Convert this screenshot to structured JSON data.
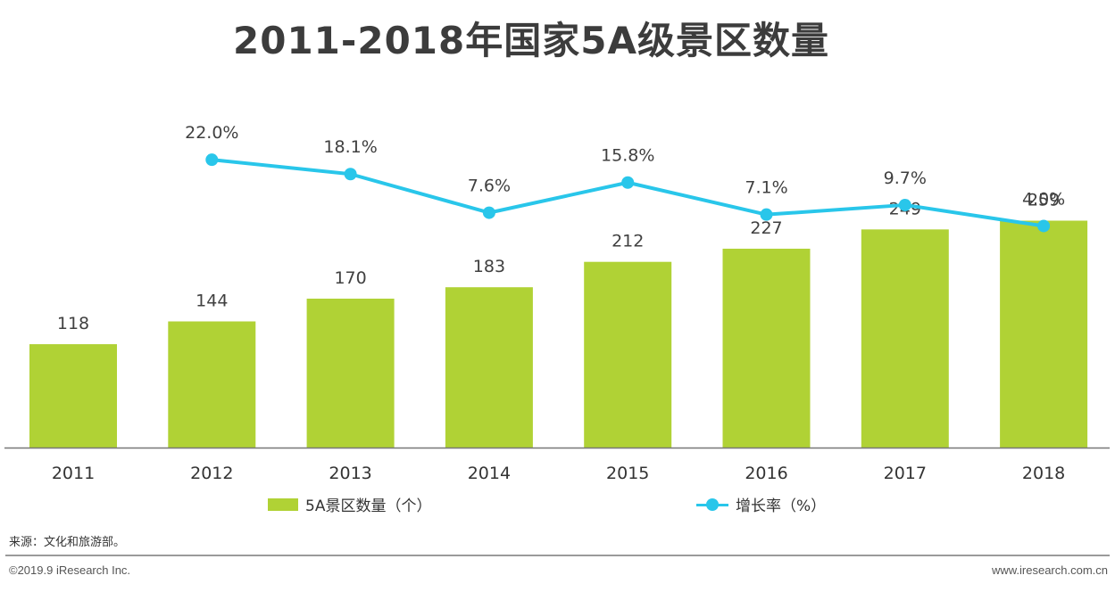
{
  "title": "2011-2018年国家5A级景区数量",
  "colors": {
    "bar": "#b0d235",
    "line": "#29c6ea",
    "axis": "#777777",
    "label": "#404040"
  },
  "chart_data": {
    "type": "bar",
    "categories": [
      "2011",
      "2012",
      "2013",
      "2014",
      "2015",
      "2016",
      "2017",
      "2018"
    ],
    "series": [
      {
        "name": "5A景区数量（个）",
        "type": "bar",
        "values": [
          118,
          144,
          170,
          183,
          212,
          227,
          249,
          259
        ]
      },
      {
        "name": "增长率（%）",
        "type": "line",
        "values": [
          null,
          22.0,
          18.1,
          7.6,
          15.8,
          7.1,
          9.7,
          4.0
        ],
        "labels": [
          "",
          "22.0%",
          "18.1%",
          "7.6%",
          "15.8%",
          "7.1%",
          "9.7%",
          "4.0%"
        ]
      }
    ],
    "ylim": [
      0,
      300
    ],
    "grid": false,
    "legend_position": "bottom"
  },
  "legend": {
    "bar_label": "5A景区数量（个）",
    "line_label": "增长率（%）"
  },
  "source": "来源：文化和旅游部。",
  "footer": {
    "copyright": "©2019.9 iResearch Inc.",
    "website": "www.iresearch.com.cn"
  }
}
